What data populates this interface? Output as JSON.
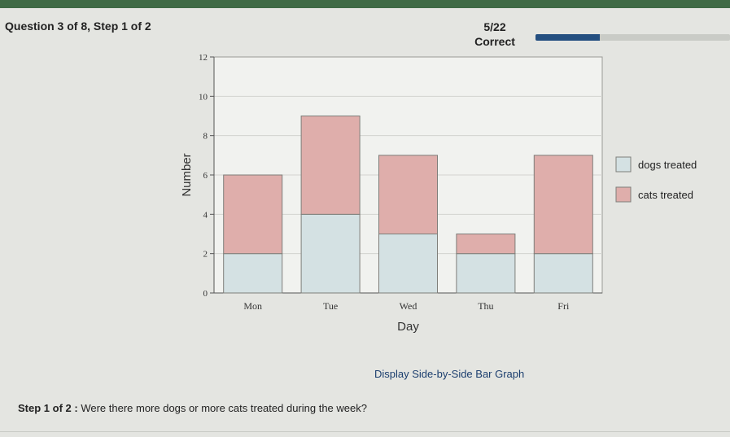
{
  "header": {
    "question": "Question 3 of 8, Step 1 of 2",
    "score": "5/22",
    "status": "Correct",
    "progress_fraction": 0.33
  },
  "chart_data": {
    "type": "bar",
    "stacked": true,
    "categories": [
      "Mon",
      "Tue",
      "Wed",
      "Thu",
      "Fri"
    ],
    "series": [
      {
        "name": "dogs treated",
        "values": [
          2,
          4,
          3,
          2,
          2
        ],
        "color": "#d4e1e3"
      },
      {
        "name": "cats treated",
        "values": [
          4,
          5,
          4,
          1,
          5
        ],
        "color": "#dfaeab"
      }
    ],
    "xlabel": "Day",
    "ylabel": "Number",
    "ylim": [
      0,
      12
    ],
    "yticks": [
      0,
      2,
      4,
      6,
      8,
      10,
      12
    ],
    "grid": true,
    "legend": "right"
  },
  "toggle_link": "Display Side-by-Side Bar Graph",
  "step": {
    "label": "Step 1 of 2 :",
    "question": "Were there more dogs or more cats treated during the week?"
  }
}
